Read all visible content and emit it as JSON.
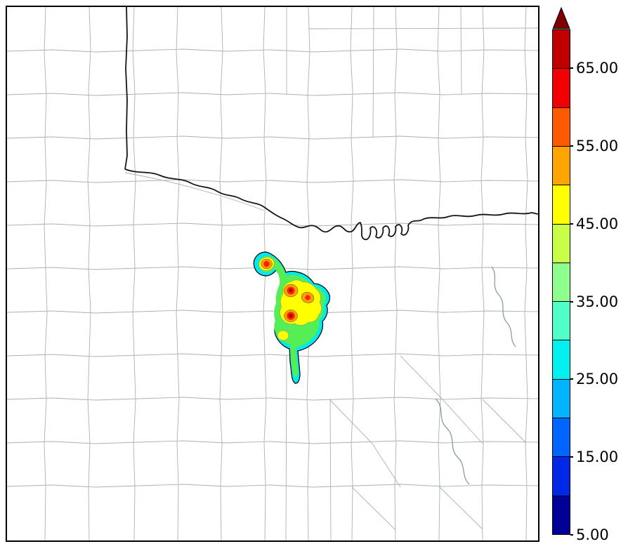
{
  "colorbar": {
    "min": 5,
    "max": 70,
    "arrow_color": "#7E0000",
    "ticks": [
      {
        "value": 65,
        "label": "65.00"
      },
      {
        "value": 55,
        "label": "55.00"
      },
      {
        "value": 45,
        "label": "45.00"
      },
      {
        "value": 35,
        "label": "35.00"
      },
      {
        "value": 25,
        "label": "25.00"
      },
      {
        "value": 15,
        "label": "15.00"
      },
      {
        "value": 5,
        "label": "5.00"
      }
    ],
    "segments": [
      {
        "from": 5,
        "to": 10,
        "color": "#000096"
      },
      {
        "from": 10,
        "to": 15,
        "color": "#0028E6"
      },
      {
        "from": 15,
        "to": 20,
        "color": "#0064FF"
      },
      {
        "from": 20,
        "to": 25,
        "color": "#00B4FF"
      },
      {
        "from": 25,
        "to": 30,
        "color": "#00F0F0"
      },
      {
        "from": 30,
        "to": 35,
        "color": "#50FFC8"
      },
      {
        "from": 35,
        "to": 40,
        "color": "#8CFF8C"
      },
      {
        "from": 40,
        "to": 45,
        "color": "#C8FF46"
      },
      {
        "from": 45,
        "to": 50,
        "color": "#FFFF00"
      },
      {
        "from": 50,
        "to": 55,
        "color": "#FFA500"
      },
      {
        "from": 55,
        "to": 60,
        "color": "#FF5A00"
      },
      {
        "from": 60,
        "to": 65,
        "color": "#F00000"
      },
      {
        "from": 65,
        "to": 70,
        "color": "#C00000"
      }
    ]
  },
  "chart_data": {
    "type": "heatmap",
    "title": "",
    "note": "Filled reflectivity contours over a county-boundary basemap with a state-border river; single elongated storm cluster with embedded intense cores; colorbar at right with arrow extension above maximum.",
    "value_range": [
      5,
      70
    ],
    "colorbar_ticks": [
      5,
      15,
      25,
      35,
      45,
      55,
      65
    ],
    "legend_position": "right",
    "storm_extent_frac": {
      "x_min": 0.465,
      "x_max": 0.61,
      "y_min": 0.46,
      "y_max": 0.705
    },
    "cells": [
      {
        "x_frac": 0.489,
        "y_frac": 0.482,
        "peak": 60
      },
      {
        "x_frac": 0.534,
        "y_frac": 0.531,
        "peak": 68
      },
      {
        "x_frac": 0.566,
        "y_frac": 0.545,
        "peak": 62
      },
      {
        "x_frac": 0.534,
        "y_frac": 0.579,
        "peak": 68
      },
      {
        "x_frac": 0.52,
        "y_frac": 0.616,
        "peak": 48
      },
      {
        "x_frac": 0.54,
        "y_frac": 0.672,
        "peak": 28
      }
    ]
  }
}
